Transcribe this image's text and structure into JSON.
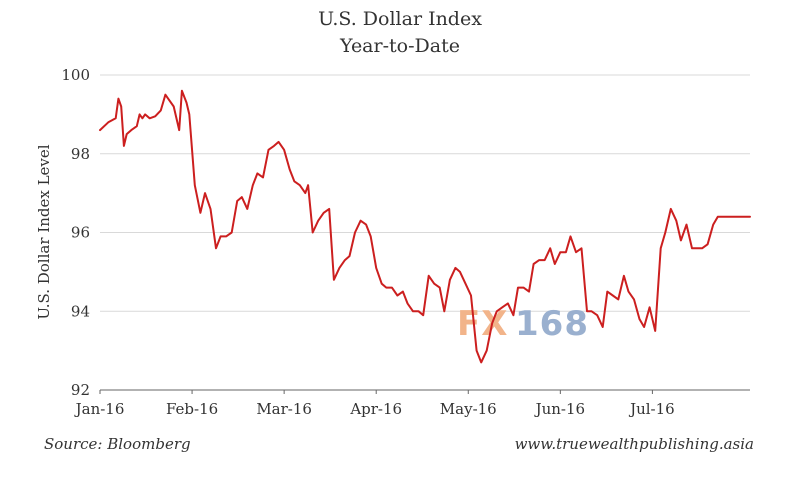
{
  "chart_data": {
    "type": "line",
    "title": "U.S. Dollar Index",
    "subtitle": "Year-to-Date",
    "xlabel": "",
    "ylabel": "U.S. Dollar Index Level",
    "ylim": [
      92,
      100
    ],
    "yticks": [
      "92",
      "94",
      "96",
      "98",
      "100"
    ],
    "xlim": [
      0,
      7.06
    ],
    "xticks": [
      {
        "label": "Jan-16",
        "pos": 0
      },
      {
        "label": "Feb-16",
        "pos": 1
      },
      {
        "label": "Mar-16",
        "pos": 2
      },
      {
        "label": "Apr-16",
        "pos": 3
      },
      {
        "label": "May-16",
        "pos": 4
      },
      {
        "label": "Jun-16",
        "pos": 5
      },
      {
        "label": "Jul-16",
        "pos": 6
      }
    ],
    "grid": true,
    "legend": "none",
    "line_color": "#cc1f1f",
    "series": [
      {
        "x": [
          0.0,
          0.09,
          0.17,
          0.2,
          0.23,
          0.26,
          0.29,
          0.34,
          0.4,
          0.43,
          0.46,
          0.49,
          0.54,
          0.6,
          0.66,
          0.71,
          0.74,
          0.8,
          0.86,
          0.89,
          0.94,
          0.97,
          1.03,
          1.09,
          1.14,
          1.2,
          1.26,
          1.31,
          1.37,
          1.43,
          1.49,
          1.54,
          1.6,
          1.66,
          1.71,
          1.77,
          1.83,
          1.89,
          1.94,
          2.0,
          2.06,
          2.11,
          2.17,
          2.23,
          2.26,
          2.31,
          2.37,
          2.43,
          2.49,
          2.54,
          2.6,
          2.66,
          2.71,
          2.77,
          2.83,
          2.89,
          2.94,
          3.0,
          3.06,
          3.11,
          3.17,
          3.23,
          3.29,
          3.34,
          3.4,
          3.46,
          3.51,
          3.57,
          3.63,
          3.69,
          3.74,
          3.8,
          3.86,
          3.91,
          3.97,
          4.03,
          4.09,
          4.14,
          4.2,
          4.26,
          4.31,
          4.37,
          4.43,
          4.49,
          4.54,
          4.6,
          4.66,
          4.71,
          4.77,
          4.83,
          4.89,
          4.94,
          5.0,
          5.06,
          5.11,
          5.17,
          5.23,
          5.29,
          5.34,
          5.4,
          5.46,
          5.51,
          5.57,
          5.63,
          5.69,
          5.74,
          5.8,
          5.86,
          5.91,
          5.97,
          6.03,
          6.09,
          6.14,
          6.2,
          6.26,
          6.31,
          6.37,
          6.43,
          6.49,
          6.54,
          6.6,
          6.66,
          6.71,
          6.77,
          6.83,
          6.89,
          6.94,
          7.0,
          7.06
        ],
        "y": [
          98.6,
          98.8,
          98.9,
          99.4,
          99.2,
          98.2,
          98.5,
          98.6,
          98.7,
          99.0,
          98.9,
          99.0,
          98.9,
          98.95,
          99.1,
          99.5,
          99.4,
          99.2,
          98.6,
          99.6,
          99.3,
          99.0,
          97.2,
          96.5,
          97.0,
          96.6,
          95.6,
          95.9,
          95.9,
          96.0,
          96.8,
          96.9,
          96.6,
          97.2,
          97.5,
          97.4,
          98.1,
          98.2,
          98.3,
          98.1,
          97.6,
          97.3,
          97.2,
          97.0,
          97.2,
          96.0,
          96.3,
          96.5,
          96.6,
          94.8,
          95.1,
          95.3,
          95.4,
          96.0,
          96.3,
          96.2,
          95.9,
          95.1,
          94.7,
          94.6,
          94.6,
          94.4,
          94.5,
          94.2,
          94.0,
          94.0,
          93.9,
          94.9,
          94.7,
          94.6,
          94.0,
          94.8,
          95.1,
          95.0,
          94.7,
          94.4,
          93.0,
          92.7,
          93.0,
          93.7,
          94.0,
          94.1,
          94.2,
          93.9,
          94.6,
          94.6,
          94.5,
          95.2,
          95.3,
          95.3,
          95.6,
          95.2,
          95.5,
          95.5,
          95.9,
          95.5,
          95.6,
          94.0,
          94.0,
          93.9,
          93.6,
          94.5,
          94.4,
          94.3,
          94.9,
          94.5,
          94.3,
          93.8,
          93.6,
          94.1,
          93.5,
          95.6,
          96.0,
          96.6,
          96.3,
          95.8,
          96.2,
          95.6,
          95.6,
          95.6,
          95.7,
          96.2,
          96.4,
          96.4,
          96.4,
          96.4,
          96.4,
          96.4,
          96.4
        ]
      }
    ]
  },
  "footer": {
    "source": "Source: Bloomberg",
    "website": "www.truewealthpublishing.asia"
  },
  "watermark": {
    "text_a": "FX",
    "text_b": "168",
    "color_a": "#f2b48a",
    "color_b": "#9ab0cf"
  }
}
